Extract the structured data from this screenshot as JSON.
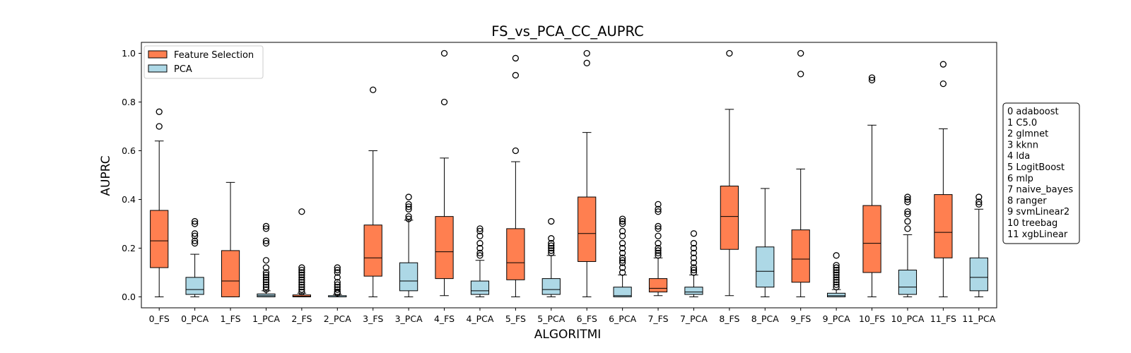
{
  "chart_data": {
    "type": "box",
    "title": "FS_vs_PCA_CC_AUPRC",
    "xlabel": "ALGORITMI",
    "ylabel": "AUPRC",
    "ylim": [
      -0.045,
      1.045
    ],
    "yticks": [
      0.0,
      0.2,
      0.4,
      0.6,
      0.8,
      1.0
    ],
    "ytick_labels": [
      "0.0",
      "0.2",
      "0.4",
      "0.6",
      "0.8",
      "1.0"
    ],
    "grid": false,
    "legend_position": "top-left",
    "legend": [
      {
        "label": "Feature Selection",
        "group": "FS",
        "color": "#ff7f50"
      },
      {
        "label": "PCA",
        "group": "PCA",
        "color": "#add8e6"
      }
    ],
    "algorithm_key": [
      "0 adaboost",
      "1 C5.0",
      "2 glmnet",
      "3 kknn",
      "4 lda",
      "5 LogitBoost",
      "6 mlp",
      "7 naive_bayes",
      "8 ranger",
      "9 svmLinear2",
      "10 treebag",
      "11 xgbLinear"
    ],
    "boxes": [
      {
        "label": "0_FS",
        "group": "FS",
        "whislo": 0.0,
        "q1": 0.12,
        "med": 0.23,
        "q3": 0.355,
        "whishi": 0.64,
        "fliers": [
          0.7,
          0.76
        ]
      },
      {
        "label": "0_PCA",
        "group": "PCA",
        "whislo": 0.0,
        "q1": 0.01,
        "med": 0.03,
        "q3": 0.08,
        "whishi": 0.175,
        "fliers": [
          0.22,
          0.23,
          0.25,
          0.26,
          0.3,
          0.31
        ]
      },
      {
        "label": "1_FS",
        "group": "FS",
        "whislo": 0.0,
        "q1": 0.0,
        "med": 0.065,
        "q3": 0.19,
        "whishi": 0.47,
        "fliers": []
      },
      {
        "label": "1_PCA",
        "group": "PCA",
        "whislo": 0.0,
        "q1": 0.0,
        "med": 0.005,
        "q3": 0.012,
        "whishi": 0.025,
        "fliers": [
          0.03,
          0.04,
          0.05,
          0.06,
          0.07,
          0.08,
          0.09,
          0.1,
          0.12,
          0.15,
          0.22,
          0.23,
          0.28,
          0.29
        ]
      },
      {
        "label": "2_FS",
        "group": "FS",
        "whislo": 0.0,
        "q1": 0.0,
        "med": 0.002,
        "q3": 0.008,
        "whishi": 0.015,
        "fliers": [
          0.02,
          0.03,
          0.04,
          0.05,
          0.06,
          0.07,
          0.08,
          0.09,
          0.1,
          0.11,
          0.12,
          0.35
        ]
      },
      {
        "label": "2_PCA",
        "group": "PCA",
        "whislo": 0.0,
        "q1": 0.0,
        "med": 0.0,
        "q3": 0.005,
        "whishi": 0.01,
        "fliers": [
          0.015,
          0.02,
          0.03,
          0.04,
          0.05,
          0.06,
          0.08,
          0.1,
          0.11,
          0.12
        ]
      },
      {
        "label": "3_FS",
        "group": "FS",
        "whislo": 0.0,
        "q1": 0.085,
        "med": 0.16,
        "q3": 0.295,
        "whishi": 0.6,
        "fliers": [
          0.85
        ]
      },
      {
        "label": "3_PCA",
        "group": "PCA",
        "whislo": 0.0,
        "q1": 0.025,
        "med": 0.065,
        "q3": 0.14,
        "whishi": 0.315,
        "fliers": [
          0.32,
          0.33,
          0.36,
          0.37,
          0.38,
          0.41
        ]
      },
      {
        "label": "4_FS",
        "group": "FS",
        "whislo": 0.005,
        "q1": 0.075,
        "med": 0.185,
        "q3": 0.33,
        "whishi": 0.57,
        "fliers": [
          0.8,
          1.0
        ]
      },
      {
        "label": "4_PCA",
        "group": "PCA",
        "whislo": 0.0,
        "q1": 0.01,
        "med": 0.025,
        "q3": 0.065,
        "whishi": 0.15,
        "fliers": [
          0.17,
          0.18,
          0.2,
          0.22,
          0.25,
          0.27,
          0.28
        ]
      },
      {
        "label": "5_FS",
        "group": "FS",
        "whislo": 0.0,
        "q1": 0.07,
        "med": 0.14,
        "q3": 0.28,
        "whishi": 0.555,
        "fliers": [
          0.6,
          0.91,
          0.98
        ]
      },
      {
        "label": "5_PCA",
        "group": "PCA",
        "whislo": 0.0,
        "q1": 0.01,
        "med": 0.03,
        "q3": 0.075,
        "whishi": 0.17,
        "fliers": [
          0.18,
          0.19,
          0.2,
          0.21,
          0.22,
          0.24,
          0.31
        ]
      },
      {
        "label": "6_FS",
        "group": "FS",
        "whislo": 0.0,
        "q1": 0.145,
        "med": 0.26,
        "q3": 0.41,
        "whishi": 0.675,
        "fliers": [
          0.96,
          1.0
        ]
      },
      {
        "label": "6_PCA",
        "group": "PCA",
        "whislo": 0.0,
        "q1": 0.0,
        "med": 0.005,
        "q3": 0.04,
        "whishi": 0.09,
        "fliers": [
          0.1,
          0.12,
          0.14,
          0.15,
          0.16,
          0.18,
          0.2,
          0.22,
          0.25,
          0.27,
          0.3,
          0.31,
          0.32
        ]
      },
      {
        "label": "7_FS",
        "group": "FS",
        "whislo": 0.005,
        "q1": 0.02,
        "med": 0.035,
        "q3": 0.075,
        "whishi": 0.16,
        "fliers": [
          0.17,
          0.18,
          0.19,
          0.2,
          0.22,
          0.25,
          0.28,
          0.29,
          0.35,
          0.36,
          0.38
        ]
      },
      {
        "label": "7_PCA",
        "group": "PCA",
        "whislo": 0.0,
        "q1": 0.01,
        "med": 0.02,
        "q3": 0.04,
        "whishi": 0.09,
        "fliers": [
          0.1,
          0.11,
          0.12,
          0.14,
          0.16,
          0.18,
          0.2,
          0.22,
          0.26
        ]
      },
      {
        "label": "8_FS",
        "group": "FS",
        "whislo": 0.005,
        "q1": 0.195,
        "med": 0.33,
        "q3": 0.455,
        "whishi": 0.77,
        "fliers": [
          1.0
        ]
      },
      {
        "label": "8_PCA",
        "group": "PCA",
        "whislo": 0.0,
        "q1": 0.04,
        "med": 0.105,
        "q3": 0.205,
        "whishi": 0.445,
        "fliers": []
      },
      {
        "label": "9_FS",
        "group": "FS",
        "whislo": 0.0,
        "q1": 0.06,
        "med": 0.155,
        "q3": 0.275,
        "whishi": 0.525,
        "fliers": [
          0.915,
          1.0
        ]
      },
      {
        "label": "9_PCA",
        "group": "PCA",
        "whislo": 0.0,
        "q1": 0.0,
        "med": 0.005,
        "q3": 0.015,
        "whishi": 0.03,
        "fliers": [
          0.04,
          0.05,
          0.06,
          0.07,
          0.08,
          0.09,
          0.1,
          0.11,
          0.12,
          0.13,
          0.17
        ]
      },
      {
        "label": "10_FS",
        "group": "FS",
        "whislo": 0.0,
        "q1": 0.1,
        "med": 0.22,
        "q3": 0.375,
        "whishi": 0.705,
        "fliers": [
          0.89,
          0.9
        ]
      },
      {
        "label": "10_PCA",
        "group": "PCA",
        "whislo": 0.0,
        "q1": 0.01,
        "med": 0.04,
        "q3": 0.11,
        "whishi": 0.255,
        "fliers": [
          0.28,
          0.31,
          0.34,
          0.35,
          0.39,
          0.4,
          0.41
        ]
      },
      {
        "label": "11_FS",
        "group": "FS",
        "whislo": 0.0,
        "q1": 0.16,
        "med": 0.265,
        "q3": 0.42,
        "whishi": 0.69,
        "fliers": [
          0.875,
          0.955
        ]
      },
      {
        "label": "11_PCA",
        "group": "PCA",
        "whislo": 0.0,
        "q1": 0.025,
        "med": 0.08,
        "q3": 0.16,
        "whishi": 0.36,
        "fliers": [
          0.38,
          0.39,
          0.41
        ]
      }
    ]
  }
}
